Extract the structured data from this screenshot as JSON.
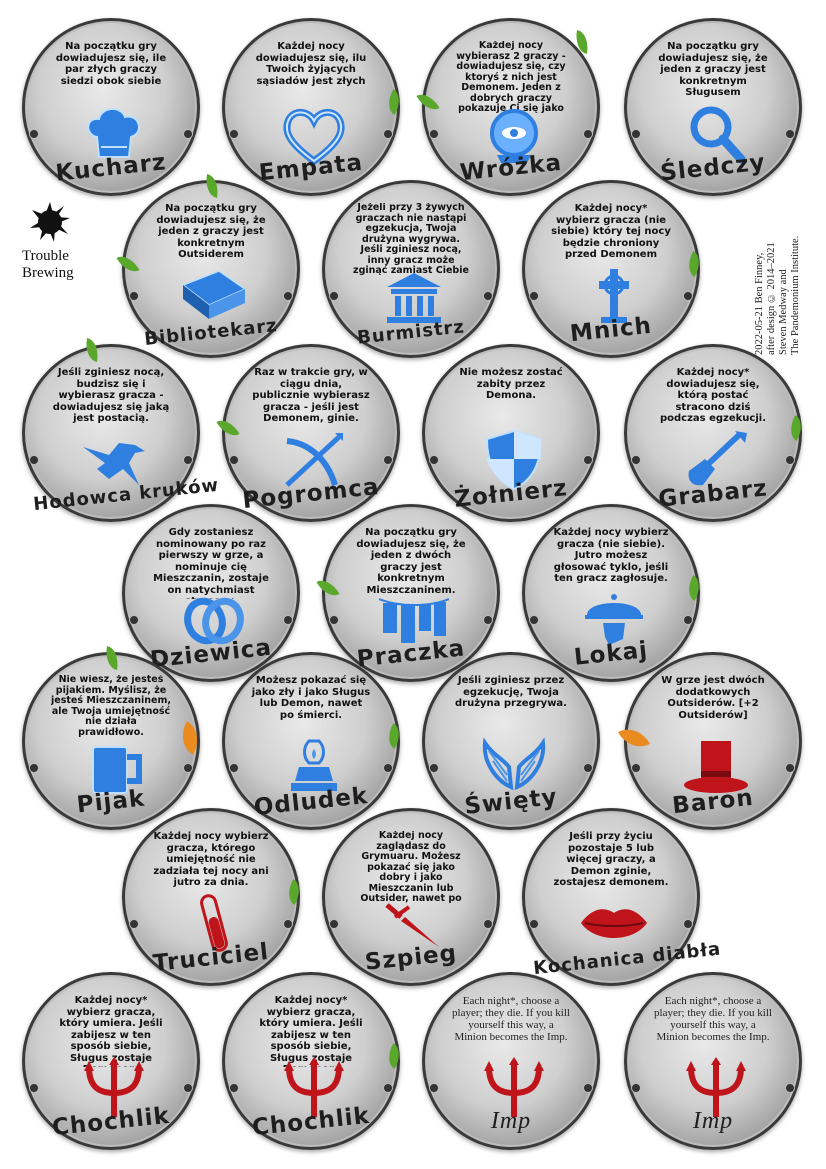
{
  "logo": {
    "line1": "Trouble",
    "line2": "Brewing"
  },
  "credits": {
    "line1": "2022-05-21 Ben Finney,",
    "line2": "after design © 2014–2021",
    "line3": "Steven Medway and",
    "line4": "The Pandemonium Institute."
  },
  "colors": {
    "good": "#3a8ee6",
    "evil": "#c0141b",
    "leaf": "#5aa82b",
    "leaf_orange": "#e98b1f"
  },
  "tokens": [
    {
      "name": "Kucharz",
      "ability": "Na początku gry dowiadujesz się, ile par złych graczy siedzi obok siebie",
      "icon": "chef-hat-icon"
    },
    {
      "name": "Empata",
      "ability": "Każdej nocy dowiadujesz się, ilu Twoich żyjących sąsiadów jest złych",
      "icon": "heart-icon"
    },
    {
      "name": "Wróżka",
      "ability": "Każdej nocy wybierasz 2 graczy - dowiadujesz się, czy ktoryś z nich jest Demonem. Jeden z dobrych graczy pokazuje Ci się jako zły",
      "icon": "crystal-ball-icon"
    },
    {
      "name": "Śledczy",
      "ability": "Na początku gry dowiadujesz się, że jeden z graczy jest konkretnym Sługusem",
      "icon": "magnifying-glass-icon"
    },
    {
      "name": "Bibliotekarz",
      "ability": "Na początku gry dowiadujesz się, że jeden z graczy jest konkretnym Outsiderem",
      "icon": "book-icon"
    },
    {
      "name": "Burmistrz",
      "ability": "Jeżeli przy 3 żywych graczach nie nastąpi egzekucja, Twoja drużyna wygrywa. Jeśli zginiesz nocą, inny gracz może zginąć zamiast Ciebie",
      "icon": "town-hall-icon"
    },
    {
      "name": "Mnich",
      "ability": "Każdej nocy* wybierz gracza (nie siebie) który tej nocy będzie chroniony przed Demonem",
      "icon": "celtic-cross-icon"
    },
    {
      "name": "Hodowca kruków",
      "ability": "Jeśli zginiesz nocą, budzisz się i wybierasz gracza - dowiadujesz się jaką jest postacią.",
      "icon": "raven-icon"
    },
    {
      "name": "Pogromca",
      "ability": "Raz w trakcie gry, w ciągu dnia, publicznie wybierasz gracza - jeśli jest Demonem, ginie.",
      "icon": "crossbow-icon"
    },
    {
      "name": "Żołnierz",
      "ability": "Nie możesz zostać zabity przez Demona.",
      "icon": "shield-icon"
    },
    {
      "name": "Grabarz",
      "ability": "Każdej nocy* dowiadujesz się, którą postać stracono dziś podczas egzekucji.",
      "icon": "shovel-icon"
    },
    {
      "name": "Dziewica",
      "ability": "Gdy zostaniesz nominowany po raz pierwszy w grze, a nominuje cię Mieszczanin, zostaje on natychmiast stracony.",
      "icon": "rings-icon"
    },
    {
      "name": "Praczka",
      "ability": "Na początku gry dowiadujesz się, że jeden z dwóch graczy jest konkretnym Mieszczaninem.",
      "icon": "laundry-line-icon"
    },
    {
      "name": "Lokaj",
      "ability": "Każdej nocy wybierz gracza (nie siebie). Jutro możesz głosować tyklo, jeśli ten gracz zagłosuje.",
      "icon": "serving-tray-icon"
    },
    {
      "name": "Pijak",
      "ability": "Nie wiesz, że jesteś pijakiem. Myślisz, że jesteś Mieszczaninem, ale Twoja umiejętność nie działa prawidłowo.",
      "icon": "beer-mug-icon"
    },
    {
      "name": "Odludek",
      "ability": "Możesz pokazać się jako zły i jako Sługus lub Demon, nawet po śmierci.",
      "icon": "oil-lamp-icon"
    },
    {
      "name": "Święty",
      "ability": "Jeśli zginiesz przez egzekucję, Twoja drużyna przegrywa.",
      "icon": "wings-icon"
    },
    {
      "name": "Baron",
      "ability": "W grze jest dwóch dodatkowych Outsiderów. [+2 Outsiderów]",
      "icon": "top-hat-icon"
    },
    {
      "name": "Truciciel",
      "ability": "Każdej nocy wybierz gracza, którego umiejętność nie zadziała tej nocy ani jutro za dnia.",
      "icon": "poison-vial-icon"
    },
    {
      "name": "Szpieg",
      "ability": "Każdej nocy zaglądasz do Grymuaru. Możesz pokazać się jako dobry i jako Mieszczanin lub Outsider, nawet po śmierci.",
      "icon": "dagger-icon"
    },
    {
      "name": "Kochanica diabła",
      "ability": "Jeśli przy życiu pozostaje 5 lub więcej graczy, a Demon zginie, zostajesz demonem.",
      "icon": "lips-icon"
    },
    {
      "name": "Chochlik",
      "ability": "Każdej nocy* wybierz gracza, który umiera. Jeśli zabijesz w ten sposób siebie, Sługus zostaje Demonem",
      "icon": "trident-icon"
    },
    {
      "name": "Chochlik",
      "ability": "Każdej nocy* wybierz gracza, który umiera. Jeśli zabijesz w ten sposób siebie, Sługus zostaje Demonem",
      "icon": "trident-icon"
    },
    {
      "name": "Imp",
      "ability": "Each night*, choose a player; they die. If you kill yourself this way, a Minion becomes the Imp.",
      "icon": "trident-icon"
    },
    {
      "name": "Imp",
      "ability": "Each night*, choose a player; they die. If you kill yourself this way, a Minion becomes the Imp.",
      "icon": "trident-icon"
    }
  ]
}
